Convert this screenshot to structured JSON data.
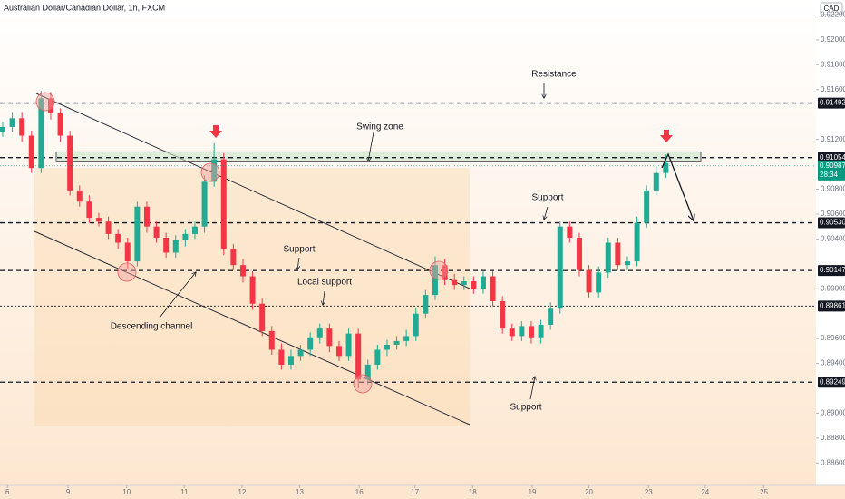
{
  "chart_data": {
    "type": "candlestick",
    "title": "Australian Dollar/Canadian Dollar, 1h, FXCM",
    "currency": "CAD",
    "up_color": "#22ab94",
    "down_color": "#f23645",
    "ylim": [
      0.8842,
      0.9232
    ],
    "yticks": [
      {
        "value": 0.922,
        "label": "0.92200"
      },
      {
        "value": 0.92,
        "label": "0.92000"
      },
      {
        "value": 0.918,
        "label": "0.91800"
      },
      {
        "value": 0.916,
        "label": "0.91600"
      },
      {
        "value": 0.912,
        "label": "0.91200"
      },
      {
        "value": 0.908,
        "label": "0.90800"
      },
      {
        "value": 0.906,
        "label": "0.90600"
      },
      {
        "value": 0.904,
        "label": "0.90400"
      },
      {
        "value": 0.9,
        "label": "0.90000"
      },
      {
        "value": 0.896,
        "label": "0.89600"
      },
      {
        "value": 0.894,
        "label": "0.89400"
      },
      {
        "value": 0.89,
        "label": "0.89000"
      },
      {
        "value": 0.888,
        "label": "0.88800"
      },
      {
        "value": 0.886,
        "label": "0.88600"
      }
    ],
    "xlim": [
      -0.28,
      85.57
    ],
    "xticks": [
      {
        "value": 0.5,
        "label": "6"
      },
      {
        "value": 6.8,
        "label": "9"
      },
      {
        "value": 12.9,
        "label": "10"
      },
      {
        "value": 18.9,
        "label": "11"
      },
      {
        "value": 24.9,
        "label": "12"
      },
      {
        "value": 30.9,
        "label": "13"
      },
      {
        "value": 37.1,
        "label": "16"
      },
      {
        "value": 42.9,
        "label": "17"
      },
      {
        "value": 48.9,
        "label": "18"
      },
      {
        "value": 55.1,
        "label": "19"
      },
      {
        "value": 61.0,
        "label": "20"
      },
      {
        "value": 67.2,
        "label": "23"
      },
      {
        "value": 73.1,
        "label": "24"
      },
      {
        "value": 79.2,
        "label": "25"
      }
    ],
    "candles": {
      "open": [
        0.9126,
        0.913,
        0.9137,
        0.9123,
        0.9097,
        0.9153,
        0.9141,
        0.9123,
        0.9079,
        0.907,
        0.9057,
        0.9054,
        0.9044,
        0.9037,
        0.9022,
        0.9066,
        0.905,
        0.9041,
        0.9029,
        0.9039,
        0.9044,
        0.905,
        0.9086,
        0.9104,
        0.9032,
        0.9019,
        0.901,
        0.8988,
        0.8966,
        0.8951,
        0.8939,
        0.8946,
        0.8951,
        0.8961,
        0.8968,
        0.8954,
        0.8946,
        0.8964,
        0.8927,
        0.8939,
        0.8951,
        0.8955,
        0.8958,
        0.8962,
        0.898,
        0.8995,
        0.9019,
        0.9007,
        0.9003,
        0.9006,
        0.9,
        0.901,
        0.899,
        0.8968,
        0.8962,
        0.897,
        0.8961,
        0.8971,
        0.8984,
        0.905,
        0.9041,
        0.9015,
        0.8997,
        0.9013,
        0.9037,
        0.9019,
        0.9022,
        0.9053,
        0.9079,
        0.9093
      ],
      "high": [
        0.9134,
        0.9142,
        0.9142,
        0.9127,
        0.9159,
        0.9158,
        0.9145,
        0.9127,
        0.9083,
        0.9075,
        0.9061,
        0.9058,
        0.9048,
        0.9041,
        0.907,
        0.907,
        0.9054,
        0.9045,
        0.9043,
        0.9048,
        0.9054,
        0.9091,
        0.9117,
        0.9109,
        0.9036,
        0.9024,
        0.9014,
        0.8992,
        0.897,
        0.8956,
        0.8951,
        0.8955,
        0.8965,
        0.8972,
        0.8972,
        0.8958,
        0.8968,
        0.8968,
        0.8943,
        0.8955,
        0.8959,
        0.8962,
        0.8967,
        0.8985,
        0.8999,
        0.9026,
        0.9024,
        0.9012,
        0.901,
        0.901,
        0.9014,
        0.9014,
        0.8994,
        0.8972,
        0.8974,
        0.8974,
        0.8975,
        0.8989,
        0.9054,
        0.9054,
        0.9045,
        0.9019,
        0.9018,
        0.9041,
        0.9041,
        0.9026,
        0.9058,
        0.9083,
        0.9098,
        0.9108
      ],
      "low": [
        0.9122,
        0.9126,
        0.9118,
        0.9093,
        0.9093,
        0.9136,
        0.9118,
        0.9075,
        0.9066,
        0.9053,
        0.905,
        0.904,
        0.9032,
        0.9016,
        0.9018,
        0.9045,
        0.9037,
        0.9025,
        0.9025,
        0.9034,
        0.904,
        0.9045,
        0.9082,
        0.9027,
        0.9015,
        0.9005,
        0.8983,
        0.8962,
        0.8947,
        0.8935,
        0.8935,
        0.8942,
        0.8946,
        0.8956,
        0.8949,
        0.8942,
        0.8942,
        0.892,
        0.8923,
        0.8935,
        0.8946,
        0.8951,
        0.8954,
        0.8958,
        0.8976,
        0.8991,
        0.9003,
        0.8999,
        0.8999,
        0.8996,
        0.8996,
        0.8986,
        0.8964,
        0.8958,
        0.8958,
        0.8956,
        0.8956,
        0.8967,
        0.898,
        0.9037,
        0.901,
        0.8993,
        0.8993,
        0.9009,
        0.9015,
        0.9015,
        0.9018,
        0.9049,
        0.9075,
        0.9089
      ],
      "close": [
        0.913,
        0.9137,
        0.9123,
        0.9097,
        0.9153,
        0.9141,
        0.9123,
        0.9079,
        0.907,
        0.9057,
        0.9054,
        0.9044,
        0.9037,
        0.9022,
        0.9066,
        0.905,
        0.9041,
        0.9029,
        0.9039,
        0.9044,
        0.905,
        0.9086,
        0.9104,
        0.9032,
        0.9019,
        0.901,
        0.8988,
        0.8966,
        0.8951,
        0.8939,
        0.8946,
        0.8951,
        0.8961,
        0.8968,
        0.8954,
        0.8946,
        0.8964,
        0.8927,
        0.8939,
        0.8951,
        0.8955,
        0.8958,
        0.8962,
        0.898,
        0.8995,
        0.9019,
        0.9007,
        0.9003,
        0.9006,
        0.9,
        0.901,
        0.899,
        0.8968,
        0.8962,
        0.897,
        0.8961,
        0.8971,
        0.8984,
        0.905,
        0.9041,
        0.9015,
        0.8997,
        0.9013,
        0.9037,
        0.9019,
        0.9022,
        0.9053,
        0.9079,
        0.9093,
        0.9101
      ]
    },
    "levels": [
      {
        "value": 0.91492,
        "label": "0.91492",
        "style": "dashed"
      },
      {
        "value": 0.91054,
        "label": "0.91054",
        "style": "dashed"
      },
      {
        "value": 0.9053,
        "label": "0.90530",
        "style": "dashed"
      },
      {
        "value": 0.90147,
        "label": "0.90147",
        "style": "dashed"
      },
      {
        "value": 0.89861,
        "label": "0.89861",
        "style": "dotted"
      },
      {
        "value": 0.89249,
        "label": "0.89249",
        "style": "dashed"
      }
    ],
    "current_price": {
      "value": 0.90987,
      "label": "0.90987",
      "countdown": "28:34",
      "color": "#089981"
    },
    "swing_zone": {
      "label": "Swing zone",
      "range": [
        0.9102,
        0.911
      ]
    },
    "annotations": [
      "Resistance",
      "Support",
      "Support",
      "Local support",
      "Descending channel",
      "Support"
    ]
  }
}
